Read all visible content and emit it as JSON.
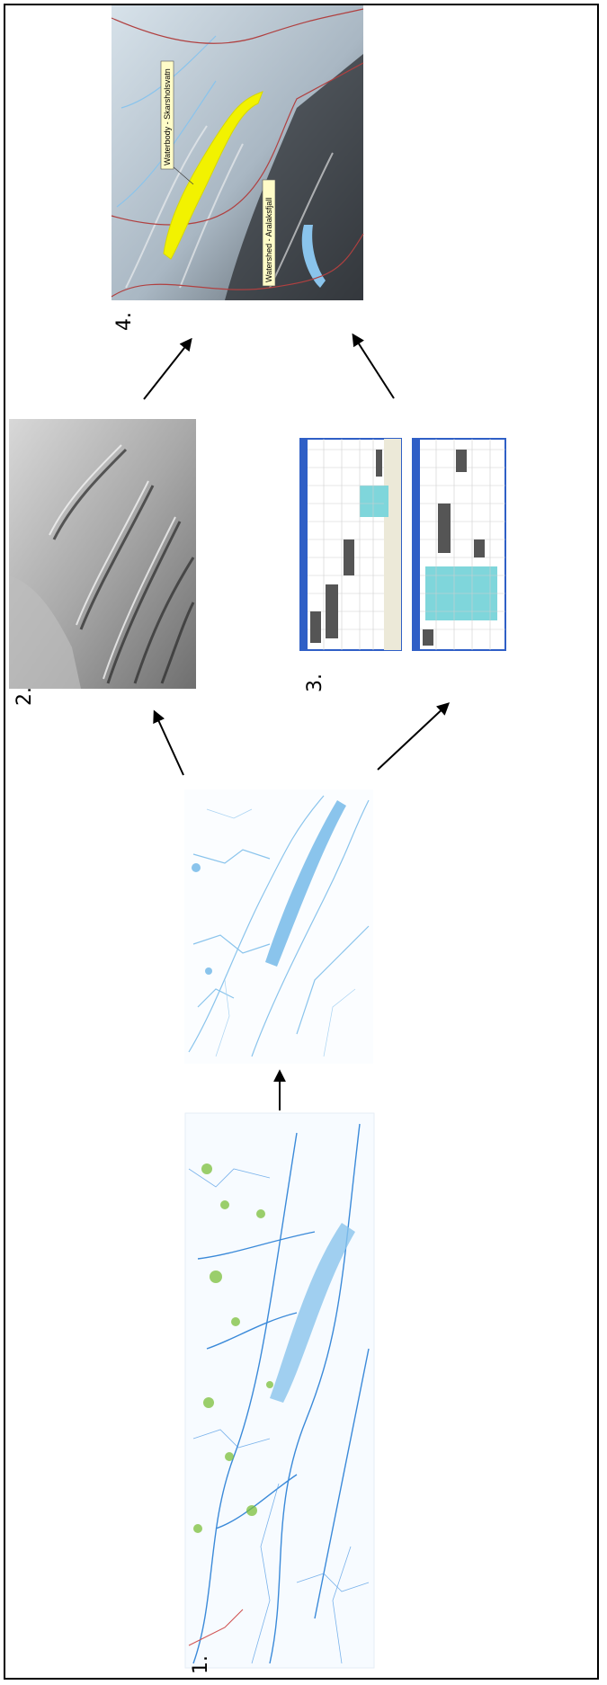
{
  "steps": [
    {
      "number": "1."
    },
    {
      "number": "2."
    },
    {
      "number": "3."
    },
    {
      "number": "4."
    }
  ],
  "map_labels": {
    "waterbody": "Waterbody - Skarsholsvatn",
    "watershed": "Watershed - Aralaksfjall"
  },
  "colors": {
    "water": "#8ac4ec",
    "stream": "#3b8ad9",
    "vegetation": "#7bbf3a",
    "highlight": "#f2f200",
    "boundary": "#b04040",
    "table_header": "#2f5fc6",
    "table_highlight": "#7fd6db"
  }
}
